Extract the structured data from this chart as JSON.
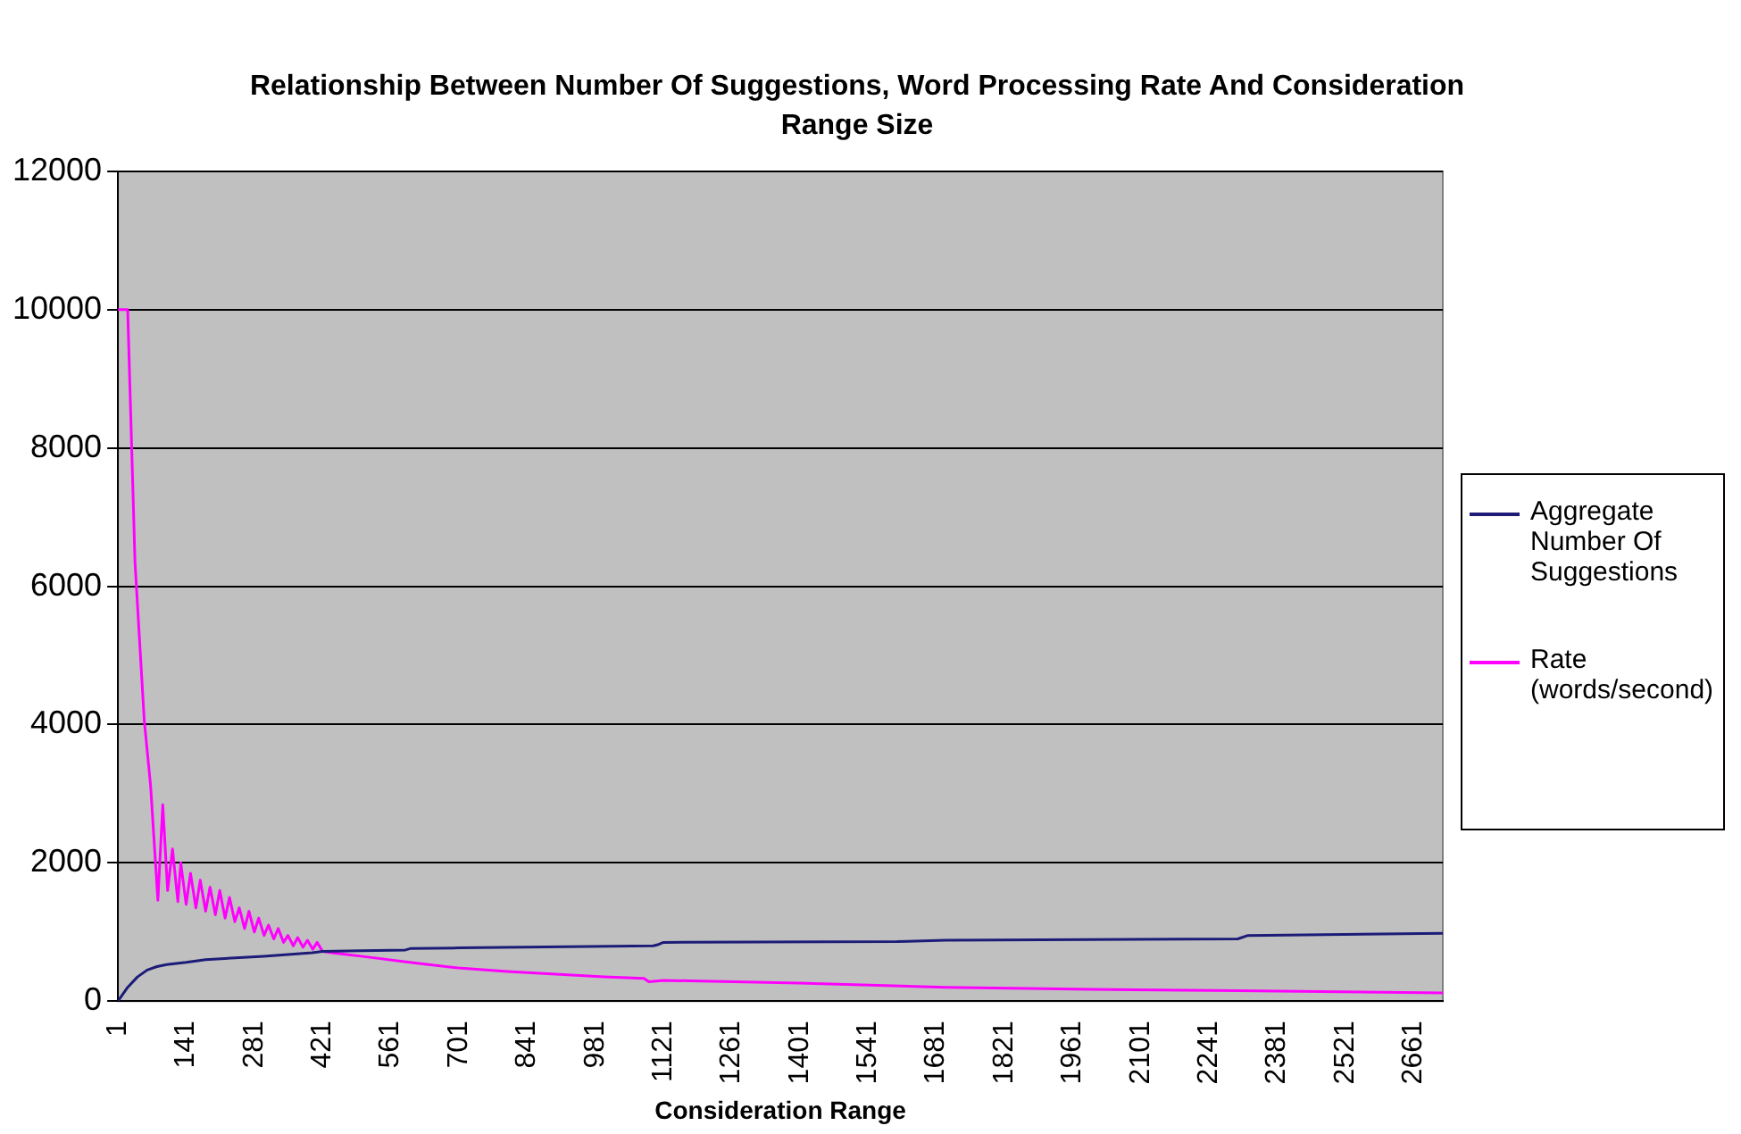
{
  "chart_data": {
    "type": "line",
    "title": "Relationship Between Number Of Suggestions, Word Processing Rate And Consideration Range Size",
    "xlabel": "Consideration Range",
    "xlim": [
      1,
      2721
    ],
    "xticks": [
      1,
      141,
      281,
      421,
      561,
      701,
      841,
      981,
      1121,
      1261,
      1401,
      1541,
      1681,
      1821,
      1961,
      2101,
      2241,
      2381,
      2521,
      2661
    ],
    "ylim": [
      0,
      12000
    ],
    "yticks": [
      0,
      2000,
      4000,
      6000,
      8000,
      10000,
      12000
    ],
    "grid": "y",
    "legend": "right",
    "marker": "none",
    "line_style": "solid",
    "series": [
      {
        "name": "Aggregate Number Of Suggestions",
        "color": "#1c1c78",
        "x": [
          1,
          21,
          41,
          61,
          81,
          101,
          141,
          181,
          250,
          300,
          400,
          421,
          500,
          591,
          601,
          700,
          1100,
          1111,
          1121,
          1600,
          1700,
          2300,
          2321,
          2721
        ],
        "values": [
          0,
          200,
          350,
          450,
          500,
          530,
          560,
          600,
          630,
          650,
          700,
          720,
          730,
          740,
          760,
          770,
          800,
          820,
          850,
          860,
          880,
          900,
          950,
          980
        ]
      },
      {
        "name": "Rate (words/second)",
        "color": "#ff00ff",
        "x": [
          1,
          21,
          36,
          55,
          68,
          83,
          93,
          103,
          113,
          124,
          130,
          141,
          150,
          161,
          170,
          181,
          190,
          201,
          210,
          221,
          230,
          241,
          250,
          261,
          270,
          281,
          290,
          301,
          310,
          321,
          330,
          341,
          350,
          361,
          370,
          381,
          390,
          401,
          410,
          421,
          440,
          500,
          600,
          700,
          800,
          900,
          1000,
          1081,
          1091,
          1121,
          1400,
          1700,
          2000,
          2300,
          2600,
          2721
        ],
        "values": [
          10000,
          10000,
          6350,
          4060,
          3120,
          1460,
          2840,
          1600,
          2200,
          1440,
          2000,
          1400,
          1850,
          1350,
          1750,
          1300,
          1650,
          1250,
          1600,
          1200,
          1500,
          1150,
          1350,
          1050,
          1300,
          1000,
          1200,
          950,
          1100,
          900,
          1050,
          850,
          950,
          800,
          920,
          780,
          880,
          750,
          850,
          720,
          700,
          650,
          560,
          480,
          430,
          390,
          350,
          330,
          280,
          300,
          260,
          200,
          170,
          150,
          130,
          120
        ]
      }
    ]
  }
}
